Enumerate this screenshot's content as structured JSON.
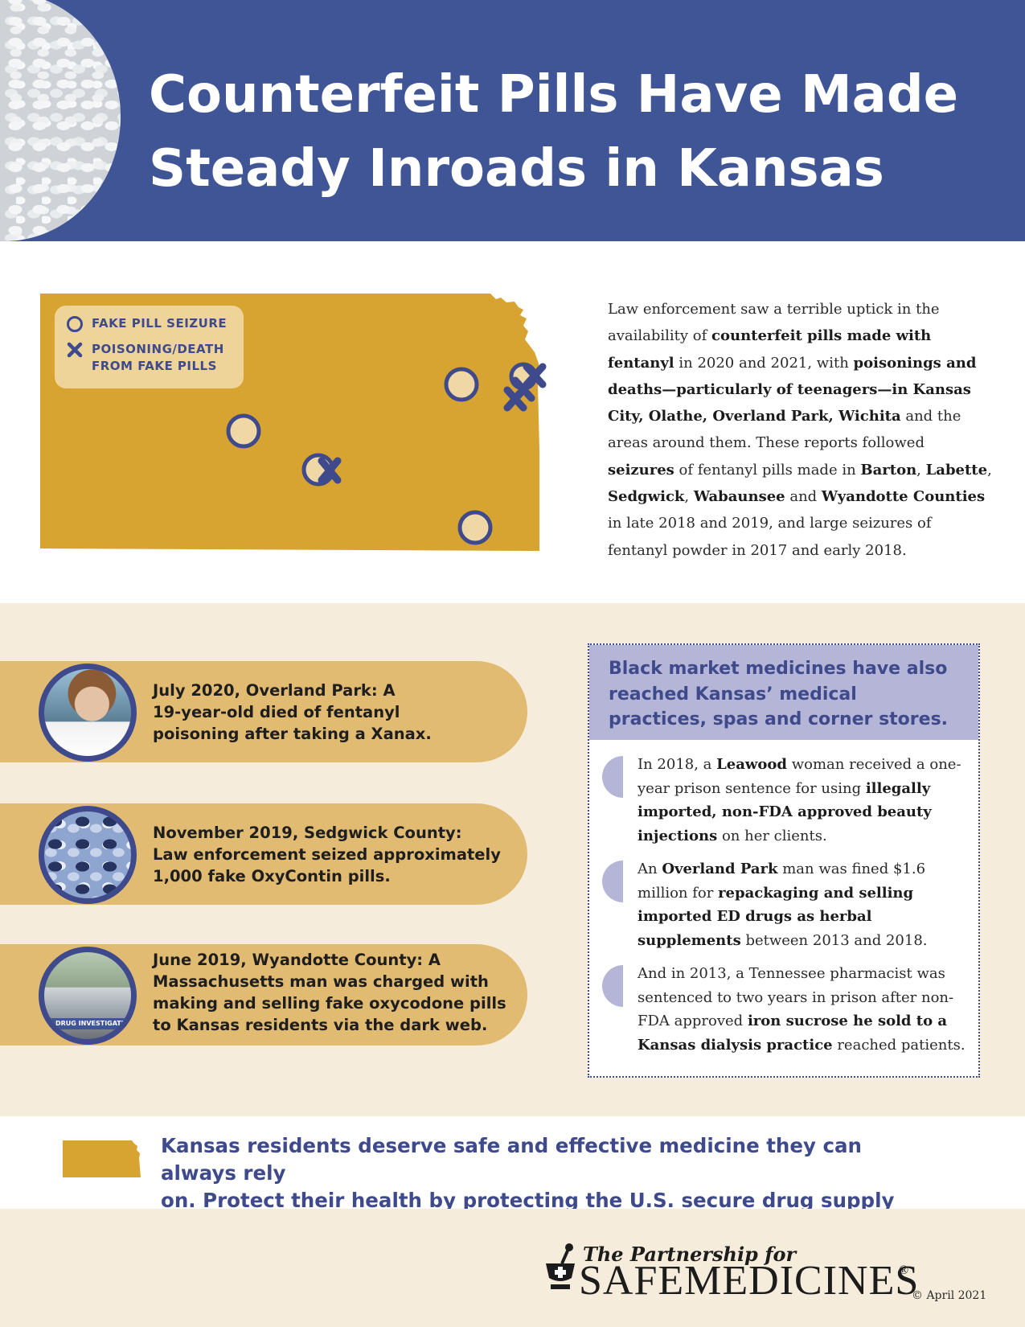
{
  "header": {
    "title_line1": "Counterfeit Pills Have Made",
    "title_line2": "Steady Inroads in Kansas"
  },
  "legend": {
    "seizure_label": "FAKE PILL SEIZURE",
    "poisoning_label_line1": "POISONING/DEATH",
    "poisoning_label_line2": "FROM FAKE PILLS"
  },
  "intro": {
    "t1": "Law enforcement saw a terrible uptick in the availability of ",
    "b1": "counterfeit pills made with fentanyl",
    "t2": " in 2020 and 2021, with ",
    "b2": "poisonings and deaths—particularly of teenagers—in Kansas City, Olathe, Overland Park, Wichita",
    "t3": " and the areas around them. These reports followed ",
    "b3": "seizures",
    "t4": " of fentanyl pills made in ",
    "b4": "Barton",
    "t5": ", ",
    "b5": "Labette",
    "t6": ", ",
    "b6": "Sedgwick",
    "t7": ", ",
    "b7": "Wabaunsee",
    "t8": " and ",
    "b8": "Wyandotte Counties",
    "t9": " in late 2018 and 2019, and large seizures of fentanyl powder in 2017 and early 2018."
  },
  "cases": [
    {
      "line1": "July 2020, Overland Park: A",
      "line2": "19-year-old died of fentanyl",
      "line3": "poisoning after taking a Xanax."
    },
    {
      "line1": "November 2019, Sedgwick County:",
      "line2": "Law enforcement seized approximately",
      "line3": "1,000 fake OxyContin pills."
    },
    {
      "line1": "June 2019, Wyandotte County: A",
      "line2": "Massachusetts man was charged with",
      "line3": "making and selling fake oxycodone pills",
      "line4": "to Kansas residents via the dark web.",
      "photo_caption": "DRUG INVESTIGATI"
    }
  ],
  "market": {
    "heading": "Black market medicines have also reached Kansas’ medical practices, spas and corner stores.",
    "item1": {
      "t1": "In 2018, a ",
      "b1": "Leawood",
      "t2": " woman received a one-year prison sentence for using ",
      "b2": "illegally imported, non-FDA approved beauty injections",
      "t3": " on her clients."
    },
    "item2": {
      "t1": "An ",
      "b1": "Overland Park",
      "t2": " man was fined $1.6 million for ",
      "b2": "repackaging and selling imported ED drugs as herbal supplements",
      "t3": " between 2013 and 2018."
    },
    "item3": {
      "t1": "And in 2013, a Tennessee pharmacist was sentenced to two years in prison after non-FDA approved ",
      "b1": "iron sucrose he sold to a Kansas dialysis practice",
      "t2": " reached patients."
    }
  },
  "cta": {
    "line1": "Kansas residents deserve safe and effective medicine they can always rely",
    "line2": "on. Protect their health by protecting the U.S. secure drug supply chain."
  },
  "footer": {
    "logo_top": "The Partnership for",
    "logo_main": "SAFEMEDICINES",
    "logo_reg": "®",
    "copyright": "© April 2021"
  },
  "colors": {
    "header_blue": "#3f5596",
    "navy": "#3f4a8c",
    "map_gold": "#d7a431",
    "marker_fill": "#f0d7a6",
    "cream": "#f6ecdc",
    "case_gold": "#e2bb73",
    "lavender": "#b5b6d7"
  },
  "icons": [
    "pill-photo",
    "kansas-map",
    "seizure-circle-icon",
    "poisoning-x-icon",
    "kansas-icon",
    "mortar-pestle-icon"
  ]
}
